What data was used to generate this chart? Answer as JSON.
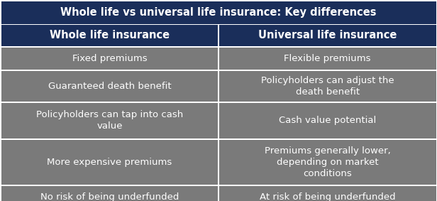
{
  "title": "Whole life vs universal life insurance: Key differences",
  "col1_header": "Whole life insurance",
  "col2_header": "Universal life insurance",
  "rows": [
    [
      "Fixed premiums",
      "Flexible premiums"
    ],
    [
      "Guaranteed death benefit",
      "Policyholders can adjust the\ndeath benefit"
    ],
    [
      "Policyholders can tap into cash\nvalue",
      "Cash value potential"
    ],
    [
      "More expensive premiums",
      "Premiums generally lower,\ndepending on market\nconditions"
    ],
    [
      "No risk of being underfunded",
      "At risk of being underfunded"
    ]
  ],
  "title_bg": "#1a2e5a",
  "header_bg": "#1a2e5a",
  "row_bg": "#7a7a7a",
  "border_color": "#ffffff",
  "text_color": "#ffffff",
  "title_fontsize": 10.5,
  "header_fontsize": 10.5,
  "cell_fontsize": 9.5,
  "line_width": 1.5
}
